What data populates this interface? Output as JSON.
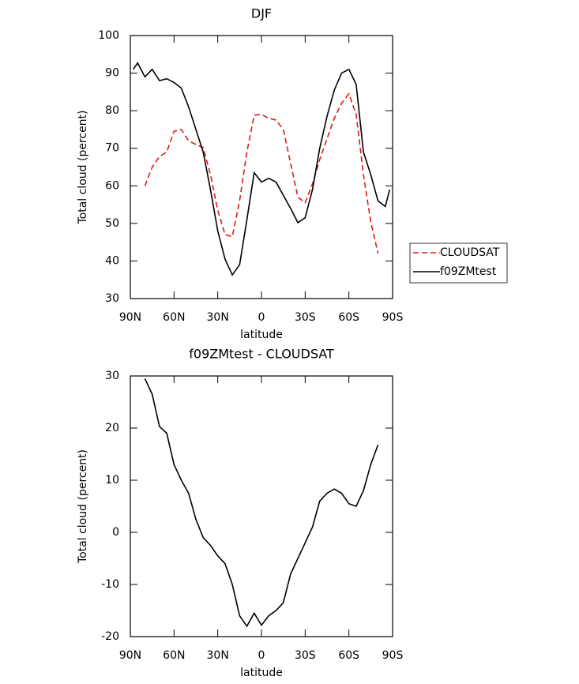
{
  "chart_data": [
    {
      "type": "line",
      "title": "DJF",
      "xlabel": "latitude",
      "ylabel": "Total cloud (percent)",
      "x": [
        88,
        85,
        80,
        75,
        70,
        65,
        60,
        55,
        50,
        45,
        40,
        35,
        30,
        25,
        20,
        15,
        10,
        5,
        0,
        -5,
        -10,
        -15,
        -20,
        -25,
        -30,
        -35,
        -40,
        -45,
        -50,
        -55,
        -60,
        -65,
        -70,
        -75,
        -80,
        -85,
        -88
      ],
      "series": [
        {
          "name": "CLOUDSAT",
          "color": "#e0191e",
          "dashed": true,
          "values": [
            null,
            null,
            60,
            65,
            67.8,
            69,
            74.5,
            75,
            72,
            71,
            70.2,
            63,
            53.5,
            47,
            46.5,
            56,
            69,
            78.8,
            79,
            78,
            77.5,
            75,
            66,
            57,
            55.5,
            60.5,
            67,
            72.5,
            78,
            82,
            84.5,
            79,
            63,
            50.5,
            42,
            null,
            null
          ]
        },
        {
          "name": "f09ZMtest",
          "color": "#000000",
          "dashed": false,
          "values": [
            91,
            92.7,
            89,
            91,
            88,
            88.5,
            87.5,
            86,
            81,
            75,
            69,
            59,
            48,
            40.5,
            36.3,
            39,
            51,
            63.5,
            61,
            62,
            61,
            57.5,
            54,
            50.2,
            51.5,
            59,
            70,
            78.5,
            85.5,
            90,
            91,
            87,
            69,
            63,
            56,
            54.5,
            59
          ]
        }
      ],
      "xlim": [
        90,
        -90
      ],
      "xticks": [
        {
          "value": 90,
          "label": "90N"
        },
        {
          "value": 60,
          "label": "60N"
        },
        {
          "value": 30,
          "label": "30N"
        },
        0,
        {
          "value": -30,
          "label": "30S"
        },
        {
          "value": -60,
          "label": "60S"
        },
        {
          "value": -90,
          "label": "90S"
        }
      ],
      "ylim": [
        30,
        100
      ],
      "yticks": [
        30,
        40,
        50,
        60,
        70,
        80,
        90,
        100
      ],
      "legend": "right"
    },
    {
      "type": "line",
      "title": "f09ZMtest - CLOUDSAT",
      "xlabel": "latitude",
      "ylabel": "Total cloud (percent)",
      "x": [
        80,
        75,
        70,
        65,
        60,
        55,
        50,
        45,
        40,
        35,
        30,
        25,
        20,
        15,
        10,
        5,
        0,
        -5,
        -10,
        -15,
        -20,
        -25,
        -30,
        -35,
        -40,
        -45,
        -50,
        -55,
        -60,
        -65,
        -70,
        -75,
        -80
      ],
      "series": [
        {
          "color": "#000000",
          "dashed": false,
          "values": [
            29.5,
            26.5,
            20.3,
            19,
            13,
            10,
            7.5,
            2.5,
            -1,
            -2.5,
            -4.5,
            -6,
            -10,
            -16,
            -18,
            -15.5,
            -17.8,
            -16,
            -15,
            -13.5,
            -8,
            -5,
            -2,
            1,
            6,
            7.5,
            8.3,
            7.5,
            5.5,
            5,
            8,
            13,
            16.8
          ]
        }
      ],
      "xlim": [
        90,
        -90
      ],
      "xticks": [
        {
          "value": 90,
          "label": "90N"
        },
        {
          "value": 60,
          "label": "60N"
        },
        {
          "value": 30,
          "label": "30N"
        },
        0,
        {
          "value": -30,
          "label": "30S"
        },
        {
          "value": -60,
          "label": "60S"
        },
        {
          "value": -90,
          "label": "90S"
        }
      ],
      "ylim": [
        -20,
        30
      ],
      "yticks": [
        -20,
        -10,
        0,
        10,
        20,
        30
      ]
    }
  ]
}
